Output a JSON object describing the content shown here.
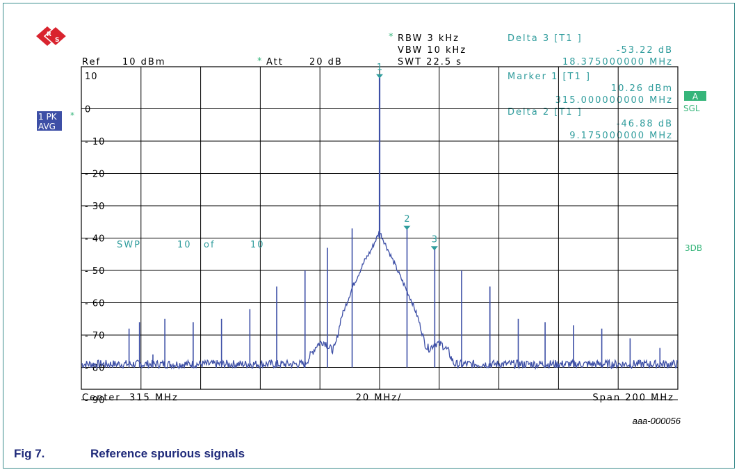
{
  "header": {
    "ref_label": "Ref",
    "ref_value": "10 dBm",
    "att_star": "*",
    "att_label": "Att",
    "att_value": "20 dB",
    "rbw_star": "*",
    "rbw": "RBW 3 kHz",
    "vbw": "VBW 10 kHz",
    "swt": "SWT 22.5 s"
  },
  "markers_info": {
    "delta3_title": "Delta 3 [T1 ]",
    "delta3_level": "-53.22 dB",
    "delta3_freq": "18.375000000 MHz",
    "marker1_title": "Marker 1 [T1 ]",
    "marker1_level": "10.26 dBm",
    "marker1_freq": "315.000000000 MHz",
    "delta2_title": "Delta 2 [T1 ]",
    "delta2_level": "-46.88 dB",
    "delta2_freq": "9.175000000 MHz"
  },
  "side": {
    "trace_mode_top": "1 PK",
    "trace_mode_bottom": "AVG",
    "trace_star": "*",
    "a_badge": "A",
    "sgl": "SGL",
    "db3": "3DB"
  },
  "sweep": {
    "label": "SWP",
    "count": "10",
    "of": "of",
    "total": "10"
  },
  "footer": {
    "center": "Center  315 MHz",
    "per_div": "20 MHz/",
    "span": "Span 200 MHz"
  },
  "figure": {
    "id": "aaa-000056",
    "number": "Fig 7.",
    "title": "Reference spurious signals"
  },
  "colors": {
    "trace": "#3d4fa6",
    "grid": "#000000",
    "marker": "#2f9c9c",
    "text": "#000000",
    "badge": "#3d4fa6",
    "star": "#36b57a"
  },
  "chart_data": {
    "type": "line",
    "xlabel": "",
    "ylabel": "",
    "x_unit": "MHz",
    "y_unit": "dBm",
    "xlim": [
      215,
      415
    ],
    "ylim": [
      -95,
      15
    ],
    "y_ticks": [
      10,
      0,
      -10,
      -20,
      -30,
      -40,
      -50,
      -60,
      -70,
      -80,
      -90
    ],
    "grid": true,
    "noise_floor": -79,
    "carrier": {
      "freq": 315,
      "level": 10.26
    },
    "skirt": [
      [
        290,
        -79
      ],
      [
        292,
        -76
      ],
      [
        294,
        -73
      ],
      [
        296,
        -72
      ],
      [
        297,
        -72.5
      ],
      [
        298,
        -74
      ],
      [
        299,
        -74.5
      ],
      [
        300,
        -74
      ],
      [
        301,
        -70
      ],
      [
        302,
        -65
      ],
      [
        304,
        -60
      ],
      [
        306,
        -55
      ],
      [
        308,
        -51
      ],
      [
        310,
        -47
      ],
      [
        312,
        -44
      ],
      [
        313,
        -42
      ],
      [
        314,
        -40
      ],
      [
        315,
        -38
      ],
      [
        316,
        -40
      ],
      [
        317,
        -42
      ],
      [
        318,
        -44
      ],
      [
        320,
        -48
      ],
      [
        322,
        -52
      ],
      [
        324,
        -56
      ],
      [
        326,
        -60
      ],
      [
        328,
        -65
      ],
      [
        330,
        -72
      ],
      [
        331,
        -74
      ],
      [
        332,
        -74
      ],
      [
        333,
        -73
      ],
      [
        334,
        -72.5
      ],
      [
        336,
        -73
      ],
      [
        338,
        -75
      ],
      [
        340,
        -79
      ]
    ],
    "spurs": [
      {
        "freq": 231.0,
        "level": -68
      },
      {
        "freq": 234.5,
        "level": -66
      },
      {
        "freq": 239.0,
        "level": -76
      },
      {
        "freq": 243.0,
        "level": -65
      },
      {
        "freq": 252.5,
        "level": -66
      },
      {
        "freq": 262.0,
        "level": -65
      },
      {
        "freq": 271.5,
        "level": -62
      },
      {
        "freq": 280.5,
        "level": -55
      },
      {
        "freq": 290.0,
        "level": -50
      },
      {
        "freq": 297.5,
        "level": -43
      },
      {
        "freq": 305.8,
        "level": -37
      },
      {
        "freq": 324.2,
        "level": -37
      },
      {
        "freq": 333.5,
        "level": -43
      },
      {
        "freq": 342.5,
        "level": -50
      },
      {
        "freq": 352.0,
        "level": -55
      },
      {
        "freq": 361.5,
        "level": -65
      },
      {
        "freq": 370.5,
        "level": -66
      },
      {
        "freq": 380.0,
        "level": -67
      },
      {
        "freq": 389.5,
        "level": -68
      },
      {
        "freq": 399.0,
        "level": -71
      },
      {
        "freq": 409.0,
        "level": -74
      }
    ],
    "markers": [
      {
        "label": "1",
        "freq": 315.0,
        "level": 10.26
      },
      {
        "label": "2",
        "freq": 324.175,
        "level": -36.62
      },
      {
        "label": "3",
        "freq": 333.375,
        "level": -42.96
      }
    ]
  }
}
